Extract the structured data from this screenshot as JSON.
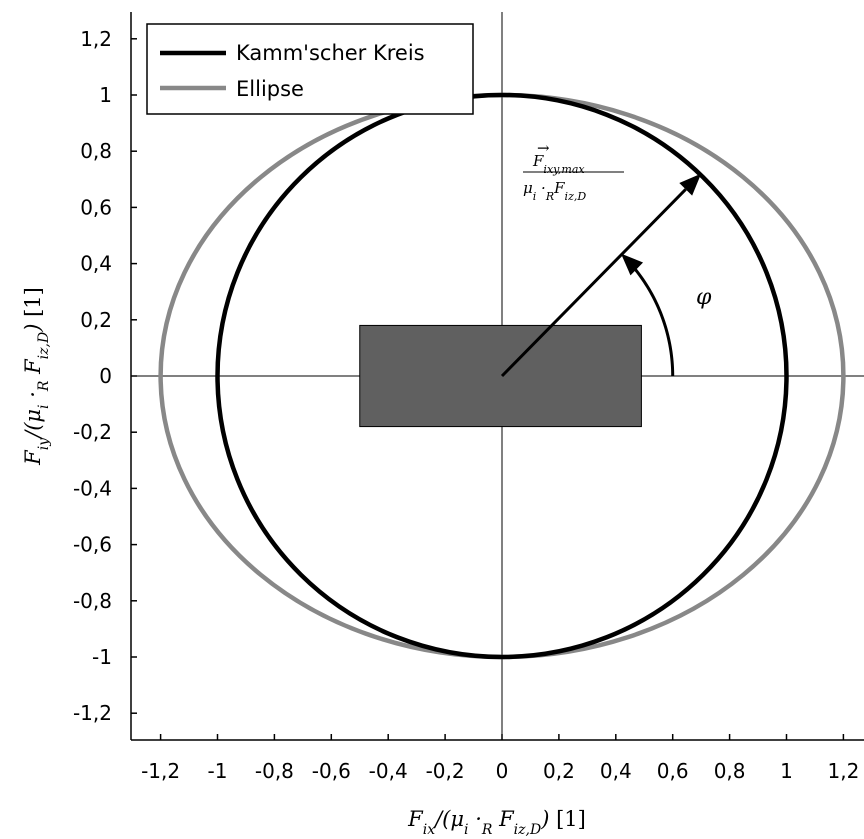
{
  "chart_data": {
    "type": "line",
    "title": "",
    "xlabel": "F_ix/(μ_i ·_R F_iz,D) [1]",
    "ylabel": "F_iy/(μ_i ·_R F_iz,D) [1]",
    "xlim": [
      -1.32,
      1.28
    ],
    "ylim": [
      -1.3,
      1.3
    ],
    "xticks": [
      -1.2,
      -1,
      -0.8,
      -0.6,
      -0.4,
      -0.2,
      0,
      0.2,
      0.4,
      0.6,
      0.8,
      1,
      1.2
    ],
    "xtick_labels": [
      "-1,2",
      "-1",
      "-0,8",
      "-0,6",
      "-0,4",
      "-0,2",
      "0",
      "0,2",
      "0,4",
      "0,6",
      "0,8",
      "1",
      "1,2"
    ],
    "yticks": [
      1.2,
      1,
      0.8,
      0.6,
      0.4,
      0.2,
      0,
      -0.2,
      -0.4,
      -0.6,
      -0.8,
      -1,
      -1.2
    ],
    "ytick_labels": [
      "1,2",
      "1",
      "0,8",
      "0,6",
      "0,4",
      "0,2",
      "0",
      "-0,2",
      "-0,4",
      "-0,6",
      "-0,8",
      "-1",
      "-1,2"
    ],
    "grid": false,
    "legend_position": "top-left",
    "series": [
      {
        "name": "Kamm'scher Kreis",
        "shape": "circle",
        "center": [
          0,
          0
        ],
        "rx": 1.0,
        "ry": 1.0,
        "color": "#000000"
      },
      {
        "name": "Ellipse",
        "shape": "ellipse",
        "center": [
          0,
          0
        ],
        "rx": 1.2,
        "ry": 1.0,
        "color": "#888888"
      }
    ],
    "rectangle": {
      "x": [
        -0.5,
        0.49
      ],
      "y": [
        -0.18,
        0.18
      ],
      "color": "#606060"
    },
    "vector": {
      "from": [
        0,
        0
      ],
      "to": [
        0.7,
        0.72
      ],
      "label": "F⃗_ixy,max / (μ_i ·_R F_iz,D)"
    },
    "angle": {
      "symbol": "φ",
      "radius": 0.6
    }
  }
}
